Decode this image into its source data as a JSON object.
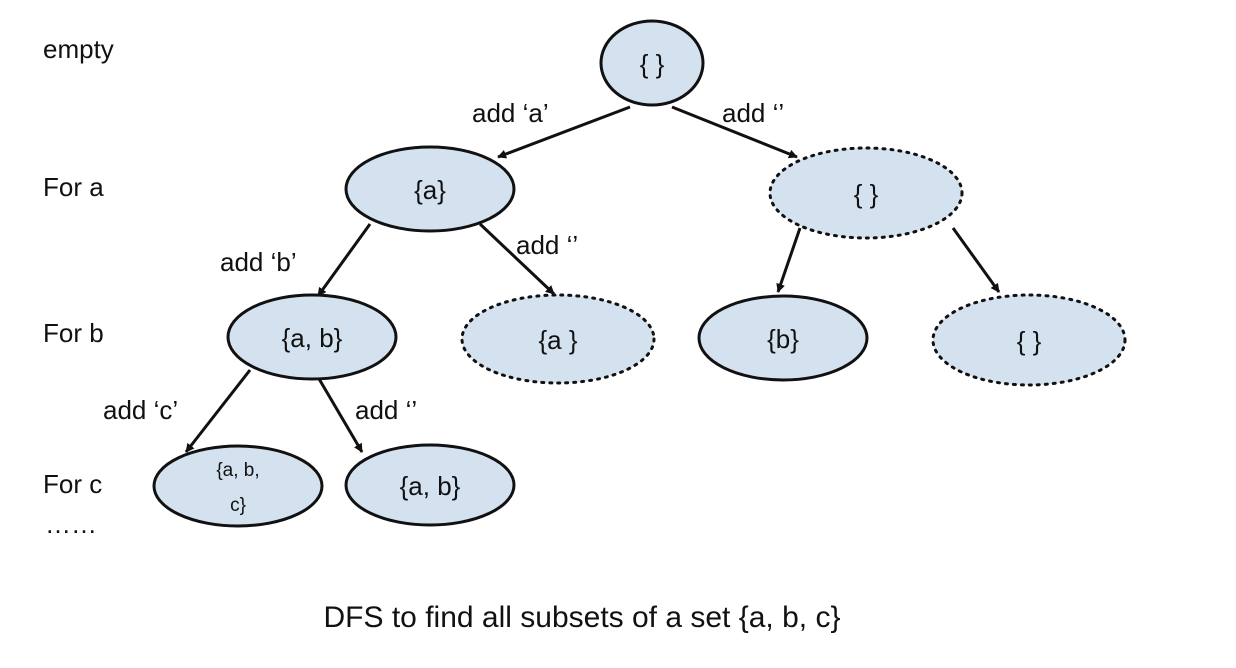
{
  "diagram": {
    "caption": "DFS to find all subsets of a set {a, b, c}",
    "levels": {
      "empty": "empty",
      "for_a": "For a",
      "for_b": "For b",
      "for_c": "For c",
      "more": "……"
    },
    "nodes": {
      "root": "{ }",
      "a": "{a}",
      "skip_a": "{ }",
      "ab": "{a, b}",
      "a_skip_b": "{a }",
      "b": "{b}",
      "empty_b": "{ }",
      "abc_line1": "{a, b,",
      "abc_line2": "c}",
      "ab_skip_c": "{a, b}"
    },
    "edges": {
      "add_a": "add ‘a’",
      "skip_a": "add ‘’",
      "add_b": "add ‘b’",
      "skip_b": "add ‘’",
      "add_c": "add ‘c’",
      "skip_c": "add ‘’"
    },
    "colors": {
      "node_fill": "#d4e2f0",
      "stroke": "#111111"
    }
  }
}
